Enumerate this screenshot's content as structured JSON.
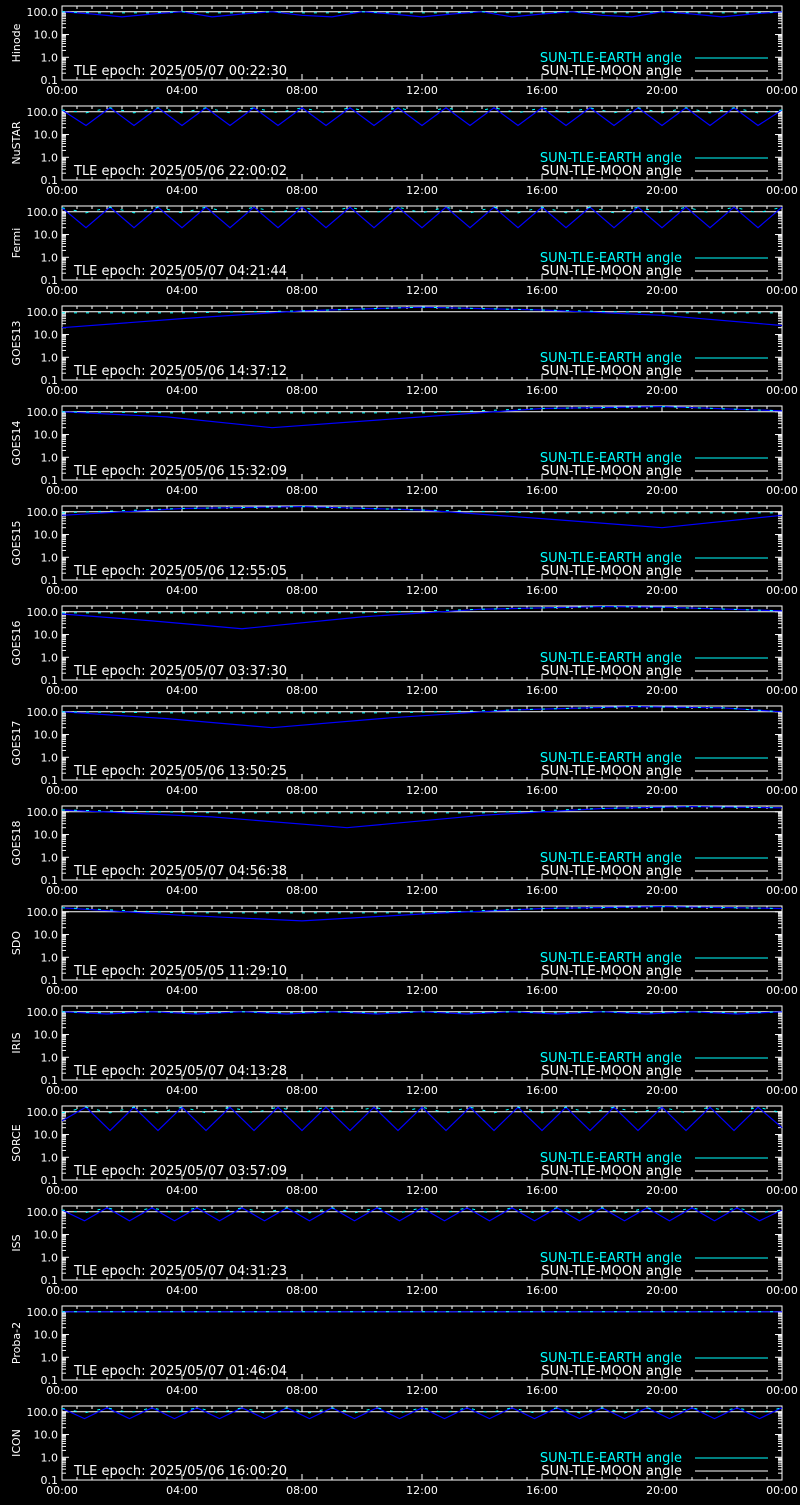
{
  "colors": {
    "background": "#000000",
    "axis": "#ffffff",
    "earth_series": "#00ffff",
    "moon_series": "#ffffff",
    "curve": "#0000ff"
  },
  "legend": {
    "earth": "SUN-TLE-EARTH angle",
    "moon": "SUN-TLE-MOON angle"
  },
  "y_ticks": [
    "100.0",
    "10.0",
    "1.0",
    "0.1"
  ],
  "x_ticks": [
    "00:00",
    "04:00",
    "08:00",
    "12:00",
    "16:00",
    "20:00",
    "00:00"
  ],
  "chart_data": [
    {
      "type": "line",
      "ylabel": "Hinode",
      "tle_epoch": "TLE epoch: 2025/05/07 00:22:30",
      "x_hours": [
        0,
        1,
        2,
        3,
        4,
        5,
        6,
        7,
        8,
        9,
        10,
        11,
        12,
        13,
        14,
        15,
        16,
        17,
        18,
        19,
        20,
        21,
        22,
        23,
        24
      ],
      "y": [
        100,
        80,
        60,
        80,
        100,
        60,
        80,
        100,
        70,
        60,
        100,
        80,
        60,
        80,
        100,
        60,
        80,
        100,
        70,
        60,
        100,
        80,
        60,
        80,
        100
      ],
      "yscale": "log",
      "ylim": [
        0.1,
        180
      ],
      "xlim": [
        "00:00",
        "00:00"
      ]
    },
    {
      "type": "line",
      "ylabel": "NuSTAR",
      "tle_epoch": "TLE epoch: 2025/05/06 22:00:02",
      "x_hours": [
        0,
        0.8,
        1.6,
        2.4,
        3.2,
        4.0,
        4.8,
        5.6,
        6.4,
        7.2,
        8.0,
        8.8,
        9.6,
        10.4,
        11.2,
        12.0,
        12.8,
        13.6,
        14.4,
        15.2,
        16.0,
        16.8,
        17.6,
        18.4,
        19.2,
        20.0,
        20.8,
        21.6,
        22.4,
        23.2,
        24.0
      ],
      "y": [
        120,
        25,
        150,
        25,
        150,
        25,
        150,
        25,
        150,
        25,
        150,
        25,
        150,
        25,
        150,
        25,
        150,
        25,
        150,
        25,
        150,
        25,
        150,
        25,
        150,
        25,
        150,
        25,
        150,
        25,
        120
      ],
      "yscale": "log",
      "ylim": [
        0.1,
        180
      ],
      "xlim": [
        "00:00",
        "00:00"
      ]
    },
    {
      "type": "line",
      "ylabel": "Fermi",
      "tle_epoch": "TLE epoch: 2025/05/07 04:21:44",
      "x_hours": [
        0,
        0.8,
        1.6,
        2.4,
        3.2,
        4.0,
        4.8,
        5.6,
        6.4,
        7.2,
        8.0,
        8.8,
        9.6,
        10.4,
        11.2,
        12.0,
        12.8,
        13.6,
        14.4,
        15.2,
        16.0,
        16.8,
        17.6,
        18.4,
        19.2,
        20.0,
        20.8,
        21.6,
        22.4,
        23.2,
        24.0
      ],
      "y": [
        150,
        20,
        160,
        20,
        160,
        20,
        160,
        20,
        160,
        20,
        160,
        20,
        160,
        20,
        160,
        20,
        160,
        20,
        160,
        20,
        160,
        20,
        160,
        20,
        160,
        20,
        160,
        20,
        160,
        20,
        160
      ],
      "yscale": "log",
      "ylim": [
        0.1,
        180
      ],
      "xlim": [
        "00:00",
        "00:00"
      ]
    },
    {
      "type": "line",
      "ylabel": "GOES13",
      "tle_epoch": "TLE epoch: 2025/05/06 14:37:12",
      "x_hours": [
        0,
        4,
        8,
        12,
        16,
        20,
        24
      ],
      "y": [
        20,
        50,
        110,
        160,
        120,
        70,
        25
      ],
      "yscale": "log",
      "ylim": [
        0.1,
        180
      ],
      "xlim": [
        "00:00",
        "00:00"
      ]
    },
    {
      "type": "line",
      "ylabel": "GOES14",
      "tle_epoch": "TLE epoch: 2025/05/06 15:32:09",
      "x_hours": [
        0,
        3.5,
        7,
        12,
        16,
        20,
        24
      ],
      "y": [
        100,
        60,
        20,
        60,
        140,
        170,
        110
      ],
      "yscale": "log",
      "ylim": [
        0.1,
        180
      ],
      "xlim": [
        "00:00",
        "00:00"
      ]
    },
    {
      "type": "line",
      "ylabel": "GOES15",
      "tle_epoch": "TLE epoch: 2025/05/06 12:55:05",
      "x_hours": [
        0,
        4,
        8,
        12,
        16,
        20,
        24
      ],
      "y": [
        70,
        140,
        170,
        120,
        50,
        20,
        70
      ],
      "yscale": "log",
      "ylim": [
        0.1,
        180
      ],
      "xlim": [
        "00:00",
        "00:00"
      ]
    },
    {
      "type": "line",
      "ylabel": "GOES16",
      "tle_epoch": "TLE epoch: 2025/05/07 03:37:30",
      "x_hours": [
        0,
        3,
        6,
        10,
        14,
        18,
        20,
        24
      ],
      "y": [
        80,
        40,
        18,
        60,
        130,
        170,
        160,
        110
      ],
      "yscale": "log",
      "ylim": [
        0.1,
        180
      ],
      "xlim": [
        "00:00",
        "00:00"
      ]
    },
    {
      "type": "line",
      "ylabel": "GOES17",
      "tle_epoch": "TLE epoch: 2025/05/06 13:50:25",
      "x_hours": [
        0,
        3.5,
        7,
        11,
        15,
        19,
        22,
        24
      ],
      "y": [
        100,
        50,
        20,
        55,
        120,
        170,
        150,
        100
      ],
      "yscale": "log",
      "ylim": [
        0.1,
        180
      ],
      "xlim": [
        "00:00",
        "00:00"
      ]
    },
    {
      "type": "line",
      "ylabel": "GOES18",
      "tle_epoch": "TLE epoch: 2025/05/07 04:56:38",
      "x_hours": [
        0,
        5,
        9.5,
        14,
        18,
        21,
        24
      ],
      "y": [
        120,
        60,
        20,
        70,
        140,
        170,
        150
      ],
      "yscale": "log",
      "ylim": [
        0.1,
        180
      ],
      "xlim": [
        "00:00",
        "00:00"
      ]
    },
    {
      "type": "line",
      "ylabel": "SDO",
      "tle_epoch": "TLE epoch: 2025/05/05 11:29:10",
      "x_hours": [
        0,
        4,
        8,
        12,
        16,
        20,
        24
      ],
      "y": [
        150,
        70,
        40,
        80,
        140,
        170,
        140
      ],
      "yscale": "log",
      "ylim": [
        0.1,
        180
      ],
      "xlim": [
        "00:00",
        "00:00"
      ]
    },
    {
      "type": "line",
      "ylabel": "IRIS",
      "tle_epoch": "TLE epoch: 2025/05/07 04:13:28",
      "x_hours": [
        0,
        1.5,
        3,
        4.5,
        6,
        7.5,
        9,
        10.5,
        12,
        13.5,
        15,
        16.5,
        18,
        19.5,
        21,
        22.5,
        24
      ],
      "y": [
        100,
        80,
        100,
        80,
        100,
        80,
        100,
        80,
        100,
        80,
        100,
        80,
        100,
        80,
        100,
        80,
        100
      ],
      "yscale": "log",
      "ylim": [
        0.1,
        180
      ],
      "xlim": [
        "00:00",
        "00:00"
      ]
    },
    {
      "type": "line",
      "ylabel": "SORCE",
      "tle_epoch": "TLE epoch: 2025/05/07 03:57:09",
      "x_hours": [
        0,
        0.8,
        1.6,
        2.4,
        3.2,
        4.0,
        4.8,
        5.6,
        6.4,
        7.2,
        8.0,
        8.8,
        9.6,
        10.4,
        11.2,
        12.0,
        12.8,
        13.6,
        14.4,
        15.2,
        16.0,
        16.8,
        17.6,
        18.4,
        19.2,
        20.0,
        20.8,
        21.6,
        22.4,
        23.2,
        24.0
      ],
      "y": [
        40,
        160,
        15,
        160,
        15,
        160,
        15,
        160,
        15,
        160,
        15,
        160,
        15,
        160,
        15,
        160,
        15,
        160,
        15,
        160,
        15,
        160,
        15,
        160,
        15,
        160,
        15,
        160,
        15,
        160,
        20
      ],
      "yscale": "log",
      "ylim": [
        0.1,
        180
      ],
      "xlim": [
        "00:00",
        "00:00"
      ]
    },
    {
      "type": "line",
      "ylabel": "ISS",
      "tle_epoch": "TLE epoch: 2025/05/07 04:31:23",
      "x_hours": [
        0,
        0.75,
        1.5,
        2.25,
        3.0,
        3.75,
        4.5,
        5.25,
        6.0,
        6.75,
        7.5,
        8.25,
        9.0,
        9.75,
        10.5,
        11.25,
        12.0,
        12.75,
        13.5,
        14.25,
        15.0,
        15.75,
        16.5,
        17.25,
        18.0,
        18.75,
        19.5,
        20.25,
        21.0,
        21.75,
        22.5,
        23.25,
        24.0
      ],
      "y": [
        120,
        40,
        150,
        40,
        150,
        40,
        150,
        40,
        150,
        40,
        150,
        40,
        150,
        40,
        150,
        40,
        150,
        40,
        150,
        40,
        150,
        40,
        150,
        40,
        150,
        40,
        150,
        40,
        150,
        40,
        150,
        40,
        120
      ],
      "yscale": "log",
      "ylim": [
        0.1,
        180
      ],
      "xlim": [
        "00:00",
        "00:00"
      ]
    },
    {
      "type": "line",
      "ylabel": "Proba-2",
      "tle_epoch": "TLE epoch: 2025/05/07 01:46:04",
      "x_hours": [
        0,
        6,
        12,
        18,
        24
      ],
      "y": [
        100,
        100,
        100,
        100,
        100
      ],
      "yscale": "log",
      "ylim": [
        0.1,
        180
      ],
      "xlim": [
        "00:00",
        "00:00"
      ]
    },
    {
      "type": "line",
      "ylabel": "ICON",
      "tle_epoch": "TLE epoch: 2025/05/06 16:00:20",
      "x_hours": [
        0,
        0.75,
        1.5,
        2.25,
        3.0,
        3.75,
        4.5,
        5.25,
        6.0,
        6.75,
        7.5,
        8.25,
        9.0,
        9.75,
        10.5,
        11.25,
        12.0,
        12.75,
        13.5,
        14.25,
        15.0,
        15.75,
        16.5,
        17.25,
        18.0,
        18.75,
        19.5,
        20.25,
        21.0,
        21.75,
        22.5,
        23.25,
        24.0
      ],
      "y": [
        140,
        50,
        150,
        50,
        150,
        50,
        150,
        50,
        150,
        50,
        150,
        50,
        150,
        50,
        150,
        50,
        150,
        50,
        150,
        50,
        150,
        50,
        150,
        50,
        150,
        50,
        150,
        50,
        150,
        50,
        150,
        50,
        150
      ],
      "yscale": "log",
      "ylim": [
        0.1,
        180
      ],
      "xlim": [
        "00:00",
        "00:00"
      ]
    }
  ]
}
